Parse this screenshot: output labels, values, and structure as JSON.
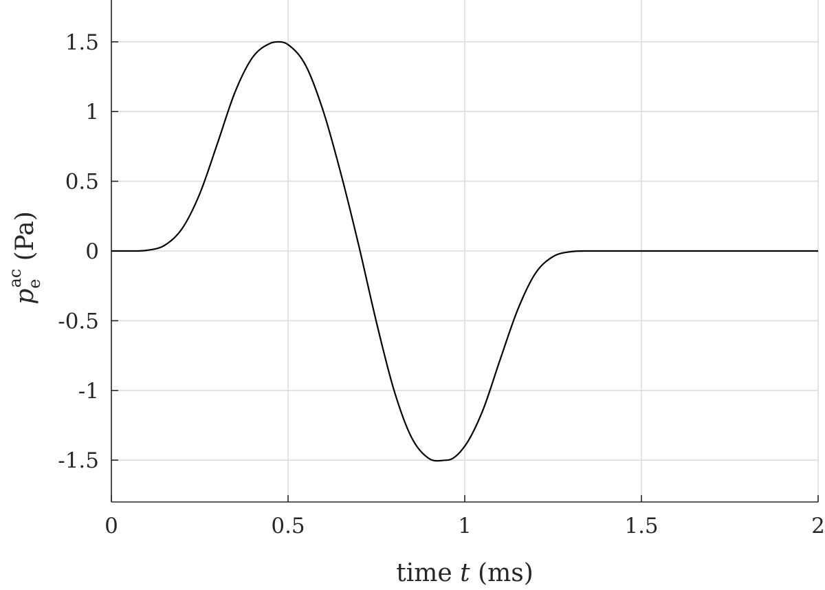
{
  "chart_data": {
    "type": "line",
    "title": "",
    "xlabel": "time t (ms)",
    "xlabel_parts": {
      "prefix": "time ",
      "variable": "t",
      "suffix": " (ms)"
    },
    "ylabel": "p_e^ac (Pa)",
    "ylabel_parts": {
      "symbol": "p",
      "subscript": "e",
      "superscript": "ac",
      "unit": " (Pa)"
    },
    "xlim": [
      0,
      2
    ],
    "ylim": [
      -1.8,
      1.8
    ],
    "x_ticks": [
      0,
      0.5,
      1,
      1.5,
      2
    ],
    "x_tick_labels": [
      "0",
      "0.5",
      "1",
      "1.5",
      "2"
    ],
    "y_ticks": [
      1.5,
      1,
      0.5,
      0,
      -0.5,
      -1,
      -1.5
    ],
    "y_tick_labels": [
      "1.5",
      "1",
      "0.5",
      "0",
      "-0.5",
      "-1",
      "-1.5"
    ],
    "grid": true,
    "line_color": "#000000",
    "series": [
      {
        "x": [
          0,
          0.05,
          0.1,
          0.15,
          0.2,
          0.25,
          0.3,
          0.35,
          0.4,
          0.45,
          0.475,
          0.5,
          0.55,
          0.6,
          0.65,
          0.7,
          0.75,
          0.8,
          0.85,
          0.9,
          0.95,
          1.0,
          1.05,
          1.1,
          1.15,
          1.2,
          1.25,
          1.3,
          1.35,
          1.4,
          1.5,
          1.6,
          1.7,
          1.8,
          1.9,
          2.0
        ],
        "y": [
          0,
          0,
          0.005,
          0.04,
          0.16,
          0.41,
          0.77,
          1.14,
          1.39,
          1.49,
          1.5,
          1.48,
          1.33,
          1.0,
          0.55,
          0.04,
          -0.51,
          -1.0,
          -1.34,
          -1.49,
          -1.5,
          -1.4,
          -1.15,
          -0.78,
          -0.42,
          -0.16,
          -0.04,
          -0.005,
          0,
          0,
          0,
          0,
          0,
          0,
          0,
          0
        ]
      }
    ]
  }
}
